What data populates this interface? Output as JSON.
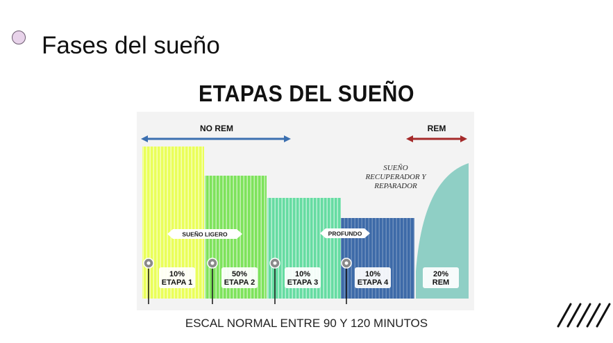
{
  "slide": {
    "title": "Fases del sueño"
  },
  "chart_data": {
    "type": "bar",
    "title": "ETAPAS DEL SUEÑO",
    "caption": "ESCAL NORMAL ENTRE 90 Y 120 MINUTOS",
    "categories": [
      "ETAPA 1",
      "ETAPA 2",
      "ETAPA 3",
      "ETAPA 4",
      "REM"
    ],
    "values": [
      10,
      50,
      10,
      10,
      20
    ],
    "value_labels": [
      "10%",
      "50%",
      "10%",
      "10%",
      "20%"
    ],
    "phase_labels": [
      "NO REM",
      "REM"
    ],
    "band_labels": [
      "SUEÑO LIGERO",
      "PROFUNDO"
    ],
    "annotation": [
      "SUEÑO",
      "RECUPERADOR Y",
      "REPARADOR"
    ],
    "colors": {
      "etapa1": "#eaff5a",
      "etapa2": "#7ee35c",
      "etapa3": "#66dca2",
      "etapa4": "#3d6aa8",
      "rem": "#8fcfc5",
      "no_rem_arrow": "#3b6fb0",
      "rem_arrow": "#a52a2a",
      "background": "#f3f3f3"
    }
  }
}
